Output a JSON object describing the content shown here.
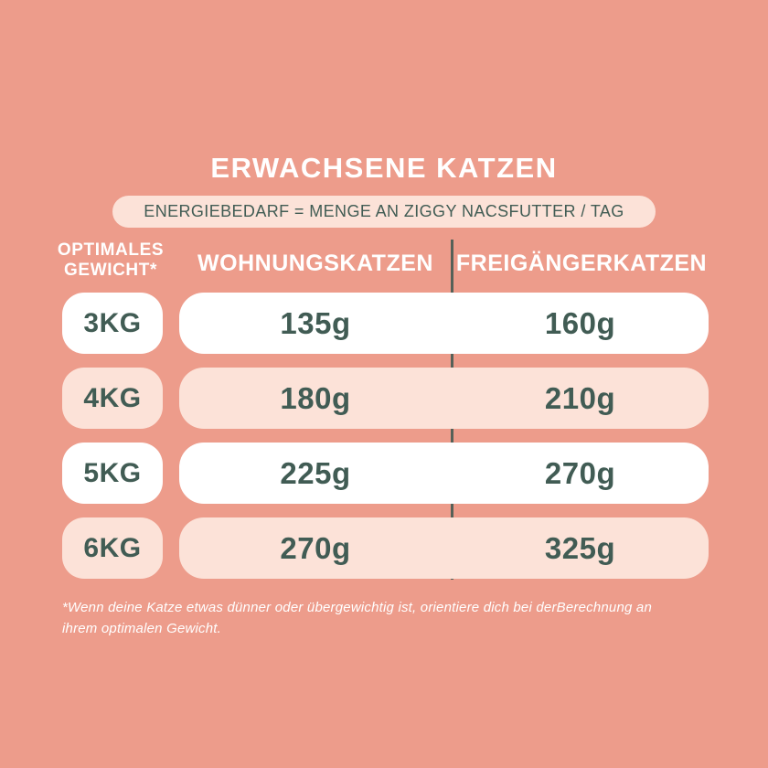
{
  "colors": {
    "background": "#ED9C8B",
    "pill_pink": "#FCE2D8",
    "pill_white": "#FFFFFF",
    "text_dark_teal": "#415C54",
    "text_white": "#FFFFFF",
    "divider": "#566158"
  },
  "title": "ERWACHSENE KATZEN",
  "subtitle": "ENERGIEBEDARF = MENGE AN ZIGGY NACSFUTTER / TAG",
  "table": {
    "weight_header_line1": "OPTIMALES",
    "weight_header_line2": "GEWICHT*",
    "col_indoor": "WOHNUNGSKATZEN",
    "col_outdoor": "FREIGÄNGERKATZEN",
    "rows": [
      {
        "weight": "3KG",
        "indoor": "135g",
        "outdoor": "160g",
        "variant": "white"
      },
      {
        "weight": "4KG",
        "indoor": "180g",
        "outdoor": "210g",
        "variant": "pink"
      },
      {
        "weight": "5KG",
        "indoor": "225g",
        "outdoor": "270g",
        "variant": "white"
      },
      {
        "weight": "6KG",
        "indoor": "270g",
        "outdoor": "325g",
        "variant": "pink"
      }
    ]
  },
  "footnote": "*Wenn deine Katze etwas dünner oder übergewichtig ist, orientiere dich bei derBerechnung an ihrem optimalen Gewicht.",
  "chart_data": {
    "type": "table",
    "title": "ERWACHSENE KATZEN",
    "subtitle": "ENERGIEBEDARF = MENGE AN ZIGGY NACSFUTTER / TAG",
    "columns": [
      "OPTIMALES GEWICHT*",
      "WOHNUNGSKATZEN",
      "FREIGÄNGERKATZEN"
    ],
    "rows": [
      [
        "3KG",
        "135g",
        "160g"
      ],
      [
        "4KG",
        "180g",
        "210g"
      ],
      [
        "5KG",
        "225g",
        "270g"
      ],
      [
        "6KG",
        "270g",
        "325g"
      ]
    ],
    "units": "g",
    "footnote": "*Wenn deine Katze etwas dünner oder übergewichtig ist, orientiere dich bei derBerechnung an ihrem optimalen Gewicht."
  }
}
